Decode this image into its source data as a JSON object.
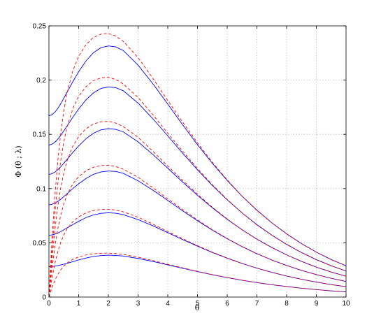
{
  "chart_data": {
    "type": "line",
    "xlabel": "θ",
    "ylabel": "Φ (θ ; λ)",
    "xlim": [
      0,
      10
    ],
    "ylim": [
      0,
      0.25
    ],
    "grid": true,
    "x_ticks": [
      0,
      1,
      2,
      3,
      4,
      5,
      6,
      7,
      8,
      9,
      10
    ],
    "y_ticks": [
      0,
      0.05,
      0.1,
      0.15,
      0.2,
      0.25
    ],
    "x_tick_labels": [
      "0",
      "1",
      "2",
      "3",
      "4",
      "5",
      "6",
      "7",
      "8",
      "9",
      "10"
    ],
    "y_tick_labels": [
      "0",
      "0.05",
      "0.1",
      "0.15",
      "0.2",
      "0.25"
    ],
    "series_style": {
      "solid": {
        "color": "#0000ff",
        "dash": "none"
      },
      "dashed": {
        "color": "#ff0000",
        "dash": "4 3"
      }
    },
    "x": [
      0,
      0.1,
      0.2,
      0.3,
      0.4,
      0.5,
      0.6,
      0.8,
      1.0,
      1.25,
      1.5,
      1.75,
      2.0,
      2.25,
      2.5,
      3.0,
      3.5,
      4.0,
      4.5,
      5.0,
      5.5,
      6.0,
      6.5,
      7.0,
      7.5,
      8.0,
      8.5,
      9.0,
      9.5,
      10.0
    ],
    "series": [
      {
        "style": "solid",
        "values": [
          0.028,
          0.0282,
          0.0285,
          0.029,
          0.0296,
          0.0303,
          0.031,
          0.0326,
          0.0342,
          0.036,
          0.0374,
          0.0382,
          0.0386,
          0.0384,
          0.0378,
          0.0356,
          0.0328,
          0.0297,
          0.0265,
          0.0235,
          0.0206,
          0.0179,
          0.0155,
          0.0133,
          0.0114,
          0.0097,
          0.0082,
          0.0069,
          0.0057,
          0.0048
        ]
      },
      {
        "style": "solid",
        "values": [
          0.057,
          0.0573,
          0.058,
          0.059,
          0.0604,
          0.062,
          0.0636,
          0.0668,
          0.0698,
          0.0733,
          0.0757,
          0.0772,
          0.0777,
          0.0773,
          0.076,
          0.0714,
          0.0657,
          0.0594,
          0.053,
          0.0469,
          0.0411,
          0.0358,
          0.031,
          0.0266,
          0.0228,
          0.0194,
          0.0164,
          0.0138,
          0.0115,
          0.0096
        ]
      },
      {
        "style": "solid",
        "values": [
          0.085,
          0.0855,
          0.0866,
          0.0882,
          0.0902,
          0.0926,
          0.095,
          0.0999,
          0.1044,
          0.1094,
          0.1131,
          0.1154,
          0.1162,
          0.1158,
          0.1141,
          0.1072,
          0.0985,
          0.0891,
          0.0795,
          0.0703,
          0.0617,
          0.0537,
          0.0465,
          0.04,
          0.0342,
          0.0291,
          0.0246,
          0.0207,
          0.0173,
          0.0144
        ]
      },
      {
        "style": "solid",
        "values": [
          0.113,
          0.1137,
          0.1152,
          0.1174,
          0.1202,
          0.1234,
          0.1266,
          0.1332,
          0.1393,
          0.146,
          0.151,
          0.1541,
          0.1552,
          0.1546,
          0.1523,
          0.1431,
          0.1314,
          0.1188,
          0.106,
          0.0938,
          0.0823,
          0.0717,
          0.0621,
          0.0534,
          0.0457,
          0.0389,
          0.0329,
          0.0276,
          0.0231,
          0.0192
        ]
      },
      {
        "style": "solid",
        "values": [
          0.14,
          0.1409,
          0.1428,
          0.1456,
          0.1492,
          0.1532,
          0.1573,
          0.1656,
          0.1734,
          0.1819,
          0.1883,
          0.1923,
          0.1937,
          0.193,
          0.1902,
          0.1788,
          0.1643,
          0.1486,
          0.1326,
          0.1173,
          0.1029,
          0.0897,
          0.0776,
          0.0668,
          0.0571,
          0.0486,
          0.0411,
          0.0345,
          0.0289,
          0.024
        ]
      },
      {
        "style": "solid",
        "values": [
          0.167,
          0.1681,
          0.1704,
          0.1739,
          0.1783,
          0.1833,
          0.1883,
          0.1983,
          0.2077,
          0.2178,
          0.2253,
          0.2299,
          0.2315,
          0.2306,
          0.2273,
          0.2138,
          0.1966,
          0.1779,
          0.1588,
          0.1405,
          0.1233,
          0.1075,
          0.093,
          0.0801,
          0.0685,
          0.0583,
          0.0493,
          0.0414,
          0.0346,
          0.0288
        ]
      },
      {
        "style": "dashed",
        "values": [
          0,
          0.0085,
          0.0155,
          0.021,
          0.0253,
          0.0286,
          0.0312,
          0.0347,
          0.037,
          0.0388,
          0.0399,
          0.0404,
          0.0405,
          0.0401,
          0.0393,
          0.0368,
          0.0336,
          0.0302,
          0.0269,
          0.0237,
          0.0207,
          0.018,
          0.0155,
          0.0133,
          0.0114,
          0.0097,
          0.0082,
          0.0069,
          0.0057,
          0.0048
        ]
      },
      {
        "style": "dashed",
        "values": [
          0,
          0.017,
          0.031,
          0.042,
          0.0506,
          0.0572,
          0.0624,
          0.0694,
          0.074,
          0.0776,
          0.0798,
          0.0808,
          0.081,
          0.0802,
          0.0786,
          0.0736,
          0.0672,
          0.0604,
          0.0538,
          0.0474,
          0.0414,
          0.036,
          0.031,
          0.0266,
          0.0228,
          0.0194,
          0.0164,
          0.0138,
          0.0115,
          0.0096
        ]
      },
      {
        "style": "dashed",
        "values": [
          0,
          0.0255,
          0.0465,
          0.063,
          0.0759,
          0.0858,
          0.0936,
          0.1041,
          0.111,
          0.1164,
          0.1197,
          0.1212,
          0.1215,
          0.1203,
          0.1179,
          0.1104,
          0.1008,
          0.0906,
          0.0807,
          0.0711,
          0.0621,
          0.054,
          0.0465,
          0.0399,
          0.0342,
          0.0291,
          0.0246,
          0.0207,
          0.0173,
          0.0144
        ]
      },
      {
        "style": "dashed",
        "values": [
          0,
          0.034,
          0.062,
          0.084,
          0.1012,
          0.1144,
          0.1248,
          0.1388,
          0.148,
          0.1552,
          0.1596,
          0.1616,
          0.162,
          0.1604,
          0.1572,
          0.1472,
          0.1344,
          0.1208,
          0.1076,
          0.0948,
          0.0828,
          0.072,
          0.062,
          0.0532,
          0.0456,
          0.0388,
          0.0328,
          0.0276,
          0.023,
          0.0192
        ]
      },
      {
        "style": "dashed",
        "values": [
          0,
          0.0425,
          0.0775,
          0.105,
          0.1265,
          0.143,
          0.156,
          0.1735,
          0.185,
          0.194,
          0.1995,
          0.202,
          0.2025,
          0.2005,
          0.1965,
          0.184,
          0.168,
          0.151,
          0.1345,
          0.1185,
          0.1035,
          0.09,
          0.0775,
          0.0665,
          0.057,
          0.0485,
          0.041,
          0.0345,
          0.0288,
          0.024
        ]
      },
      {
        "style": "dashed",
        "values": [
          0,
          0.051,
          0.093,
          0.126,
          0.1518,
          0.1716,
          0.1872,
          0.2082,
          0.222,
          0.2328,
          0.2394,
          0.2424,
          0.243,
          0.2406,
          0.2358,
          0.2208,
          0.2016,
          0.1812,
          0.1614,
          0.1422,
          0.1242,
          0.108,
          0.093,
          0.0798,
          0.0684,
          0.0582,
          0.0492,
          0.0414,
          0.0346,
          0.0288
        ]
      }
    ]
  }
}
